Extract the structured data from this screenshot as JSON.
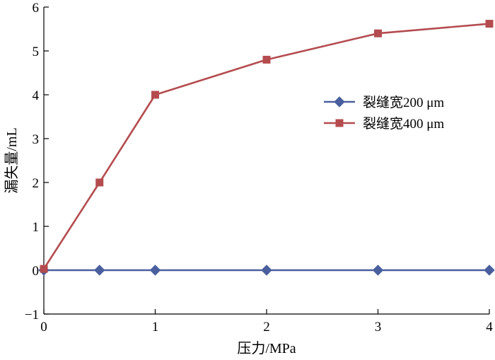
{
  "chart_data": {
    "type": "line",
    "xlabel": "压力/MPa",
    "ylabel": "漏失量/mL",
    "xlim": [
      0,
      4
    ],
    "ylim": [
      -1,
      6
    ],
    "x_ticks": [
      "0",
      "1",
      "2",
      "3",
      "4"
    ],
    "y_ticks": [
      "−1",
      "0",
      "1",
      "2",
      "3",
      "4",
      "5",
      "6"
    ],
    "grid": false,
    "legend_position": "right",
    "series": [
      {
        "name": "裂缝宽200 μm",
        "marker": "diamond",
        "color": "#4a5f9e",
        "x": [
          0,
          0.5,
          1,
          2,
          3,
          4
        ],
        "y": [
          0,
          0,
          0,
          0,
          0,
          0
        ]
      },
      {
        "name": "裂缝宽400 μm",
        "marker": "square",
        "color": "#b44c4f",
        "x": [
          0,
          0.5,
          1,
          2,
          3,
          4
        ],
        "y": [
          0.03,
          2.0,
          4.0,
          4.8,
          5.4,
          5.62
        ]
      }
    ]
  }
}
